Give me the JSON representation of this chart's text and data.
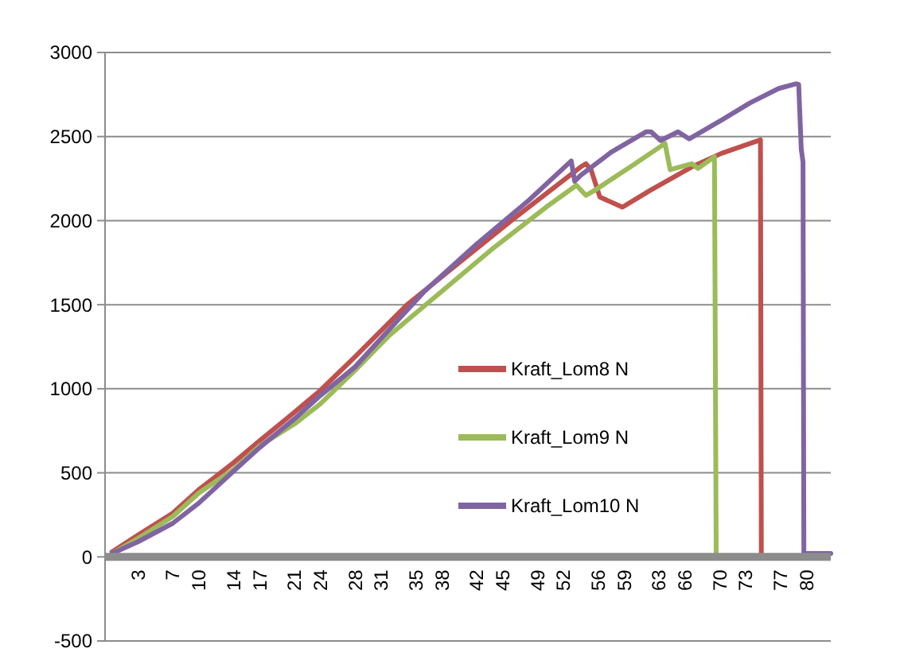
{
  "chart_data": {
    "type": "line",
    "xlim": [
      -0.8,
      82.8
    ],
    "xticks": [
      3,
      7,
      10,
      14,
      17,
      21,
      24,
      28,
      31,
      35,
      38,
      42,
      45,
      49,
      52,
      56,
      59,
      63,
      66,
      70,
      73,
      77,
      80
    ],
    "ylim": [
      -500,
      3000
    ],
    "yticks": [
      -500,
      0,
      500,
      1000,
      1500,
      2000,
      2500,
      3000
    ],
    "grid": "y",
    "legend": "right",
    "marker": "none",
    "line_style": "solid",
    "series": [
      {
        "name": "Kraft_Lom8 N",
        "color": "#c0504d",
        "x": [
          0,
          3,
          7,
          10,
          14,
          17,
          21,
          24,
          28,
          34,
          40,
          46,
          50,
          54,
          54.6,
          55.2,
          56.2,
          58.8,
          62,
          66.8,
          70.2,
          74.7,
          74.8,
          81.5
        ],
        "values": [
          30,
          130,
          260,
          400,
          560,
          690,
          860,
          990,
          1190,
          1500,
          1750,
          2000,
          2160,
          2320,
          2338,
          2300,
          2140,
          2080,
          2180,
          2320,
          2400,
          2480,
          0,
          0
        ]
      },
      {
        "name": "Kraft_Lom9 N",
        "color": "#9bbb59",
        "x": [
          0,
          3,
          7,
          10,
          14,
          17,
          21,
          24,
          28,
          32,
          38,
          44,
          50,
          53.5,
          54.6,
          55.6,
          60,
          63.7,
          64.3,
          66.8,
          67.5,
          69.4,
          69.6,
          72.8
        ],
        "values": [
          20,
          110,
          240,
          380,
          520,
          660,
          790,
          910,
          1110,
          1320,
          1580,
          1840,
          2080,
          2210,
          2150,
          2180,
          2330,
          2459,
          2303,
          2338,
          2310,
          2380,
          0,
          0
        ]
      },
      {
        "name": "Kraft_Lom10 N",
        "color": "#8064a2",
        "x": [
          0,
          3,
          7,
          10,
          14,
          17,
          21,
          24,
          28,
          31,
          36,
          42,
          48,
          52.9,
          53.3,
          54,
          57.5,
          61.5,
          62.1,
          63.2,
          65.2,
          66.5,
          70.2,
          73.5,
          76.8,
          78.8,
          79.1,
          79.4,
          79.6,
          79.7,
          82.8
        ],
        "values": [
          20,
          90,
          200,
          320,
          510,
          650,
          820,
          960,
          1130,
          1300,
          1580,
          1860,
          2120,
          2355,
          2234,
          2270,
          2407,
          2528,
          2528,
          2476,
          2528,
          2486,
          2597,
          2700,
          2786,
          2814,
          2810,
          2424,
          2350,
          20,
          20
        ]
      }
    ]
  }
}
